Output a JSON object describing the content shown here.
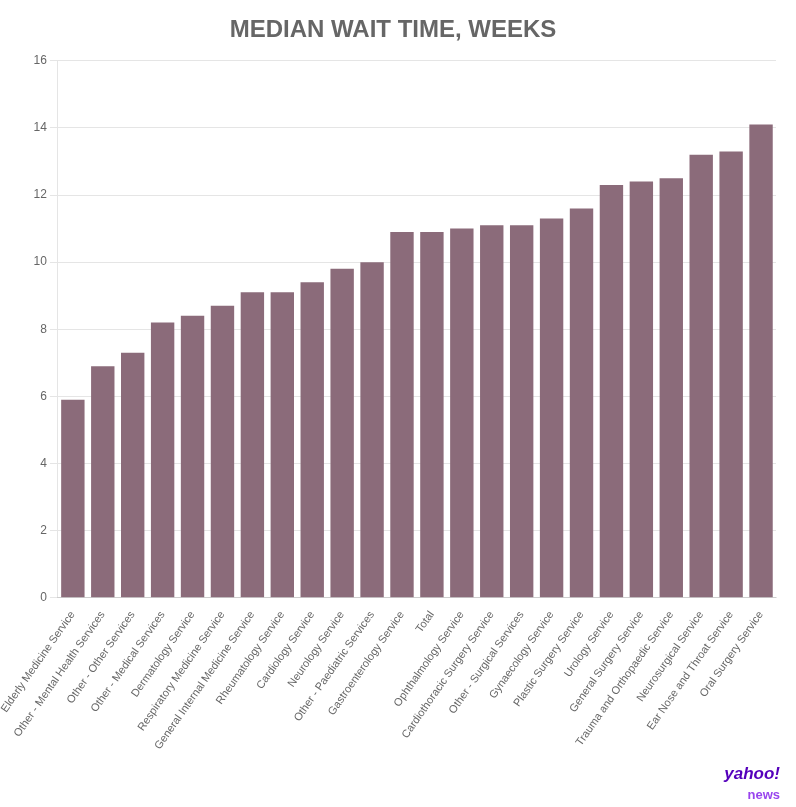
{
  "chart_data": {
    "type": "bar",
    "title": "MEDIAN WAIT TIME, WEEKS",
    "categories": [
      "Elderly Medicine Service",
      "Other - Mental Health Services",
      "Other - Other Services",
      "Other - Medical Services",
      "Dermatology Service",
      "Respiratory Medicine Service",
      "General Internal Medicine Service",
      "Rheumatology Service",
      "Cardiology Service",
      "Neurology Service",
      "Other - Paediatric Services",
      "Gastroenterology Service",
      "Total",
      "Ophthalmology Service",
      "Cardiothoracic Surgery Service",
      "Other - Surgical Services",
      "Gynaecology Service",
      "Plastic Surgery Service",
      "Urology Service",
      "General Surgery Service",
      "Trauma and Orthopaedic Service",
      "Neurosurgical Service",
      "Ear Nose and Throat Service",
      "Oral Surgery Service"
    ],
    "values": [
      5.9,
      6.9,
      7.3,
      8.2,
      8.4,
      8.7,
      9.1,
      9.1,
      9.4,
      9.8,
      10.0,
      10.9,
      10.9,
      11.0,
      11.1,
      11.1,
      11.3,
      11.6,
      12.3,
      12.4,
      12.5,
      13.2,
      13.3,
      14.1
    ],
    "color": "#8b6b7a",
    "ylim": [
      0,
      16
    ],
    "yticks": [
      0,
      2,
      4,
      6,
      8,
      10,
      12,
      14,
      16
    ],
    "grid": true,
    "annotations": [
      {
        "text": "yahoo!",
        "color": "#5500bb"
      },
      {
        "text": "news",
        "color": "#9944ee"
      }
    ]
  }
}
